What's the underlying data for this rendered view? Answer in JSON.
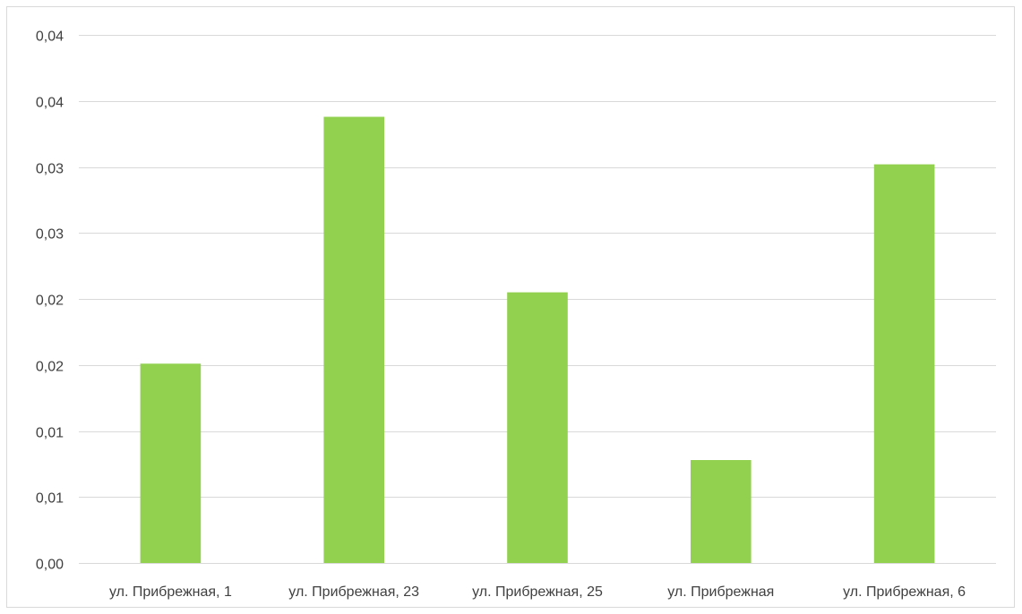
{
  "chart_data": {
    "type": "bar",
    "title": "",
    "xlabel": "",
    "ylabel": "",
    "categories": [
      "ул. Прибрежная, 1",
      "ул. Прибрежная, 23",
      "ул. Прибрежная, 25",
      "ул. Прибрежная",
      "ул. Прибрежная, 6"
    ],
    "values": [
      0.0151,
      0.0338,
      0.0205,
      0.0078,
      0.0302
    ],
    "ylim": [
      0,
      0.04
    ],
    "yticks": [
      0,
      0.005,
      0.01,
      0.015,
      0.02,
      0.025,
      0.03,
      0.035,
      0.04
    ],
    "ytick_labels": [
      "0,00",
      "0,01",
      "0,01",
      "0,02",
      "0,02",
      "0,03",
      "0,03",
      "0,04",
      "0,04"
    ],
    "grid": true,
    "legend": "none",
    "colors": {
      "bar": "#92d050",
      "grid": "#d9d9d9",
      "text": "#404040"
    }
  }
}
